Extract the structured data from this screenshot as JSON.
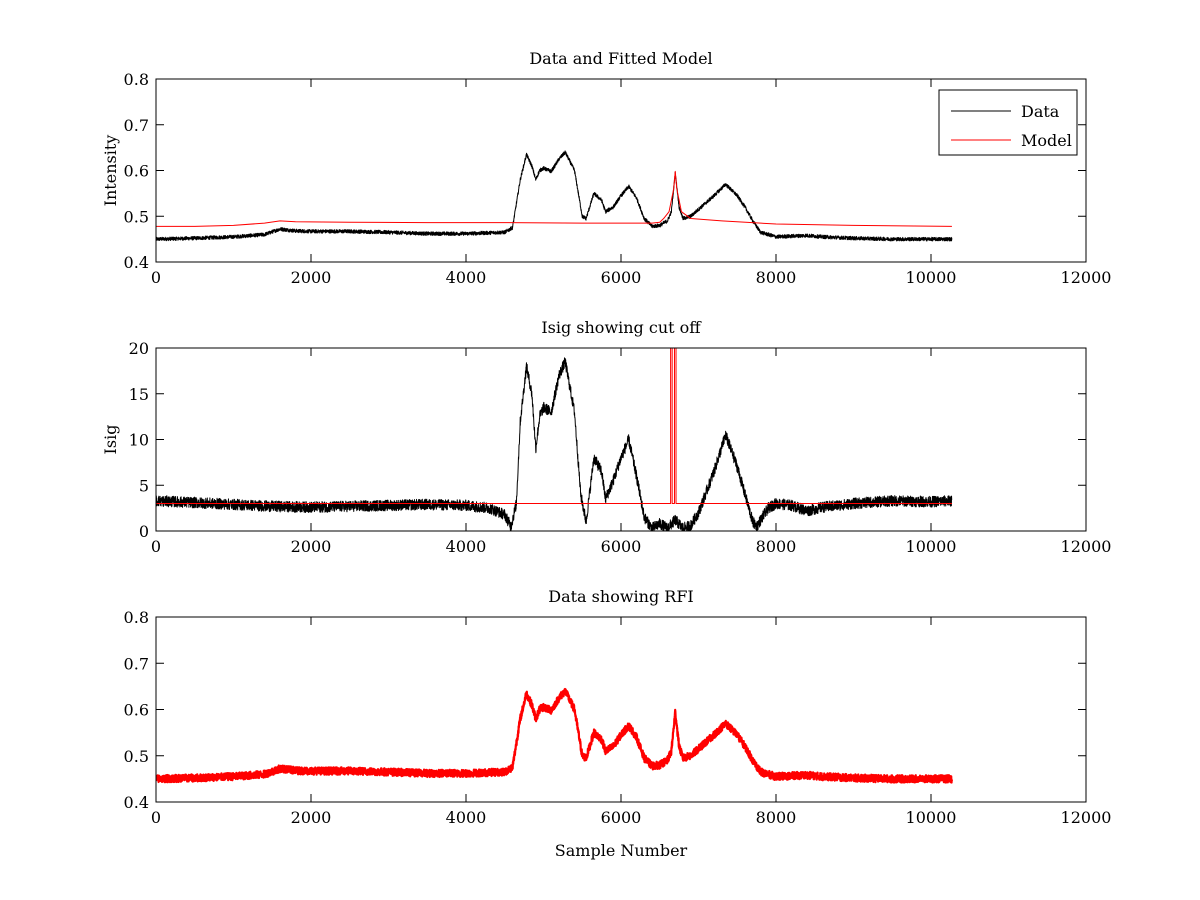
{
  "chart_data": [
    {
      "type": "line",
      "title": "Data and Fitted Model",
      "xlabel": "",
      "ylabel": "Intensity",
      "xlim": [
        0,
        12000
      ],
      "ylim": [
        0.4,
        0.8
      ],
      "xticks": [
        0,
        2000,
        4000,
        6000,
        8000,
        10000,
        12000
      ],
      "yticks": [
        0.4,
        0.5,
        0.6,
        0.7,
        0.8
      ],
      "ytick_labels": [
        "0.4",
        "0.5",
        "0.6",
        "0.7",
        "0.8"
      ],
      "grid": false,
      "legend": {
        "placement": "top-right",
        "entries": [
          "Data",
          "Model"
        ]
      },
      "series": [
        {
          "name": "Data",
          "color": "#000000",
          "noise": 0.004,
          "points": [
            [
              0,
              0.45
            ],
            [
              500,
              0.452
            ],
            [
              1000,
              0.455
            ],
            [
              1400,
              0.46
            ],
            [
              1600,
              0.472
            ],
            [
              1800,
              0.468
            ],
            [
              2000,
              0.467
            ],
            [
              2500,
              0.467
            ],
            [
              3000,
              0.465
            ],
            [
              3500,
              0.462
            ],
            [
              4000,
              0.462
            ],
            [
              4500,
              0.465
            ],
            [
              4600,
              0.475
            ],
            [
              4700,
              0.58
            ],
            [
              4780,
              0.635
            ],
            [
              4850,
              0.61
            ],
            [
              4900,
              0.58
            ],
            [
              4950,
              0.6
            ],
            [
              5000,
              0.605
            ],
            [
              5100,
              0.598
            ],
            [
              5200,
              0.625
            ],
            [
              5280,
              0.64
            ],
            [
              5400,
              0.6
            ],
            [
              5500,
              0.5
            ],
            [
              5550,
              0.495
            ],
            [
              5650,
              0.55
            ],
            [
              5750,
              0.535
            ],
            [
              5800,
              0.51
            ],
            [
              5900,
              0.52
            ],
            [
              6000,
              0.545
            ],
            [
              6100,
              0.565
            ],
            [
              6200,
              0.54
            ],
            [
              6300,
              0.495
            ],
            [
              6400,
              0.478
            ],
            [
              6500,
              0.48
            ],
            [
              6600,
              0.49
            ],
            [
              6650,
              0.51
            ],
            [
              6700,
              0.595
            ],
            [
              6750,
              0.52
            ],
            [
              6800,
              0.495
            ],
            [
              6900,
              0.5
            ],
            [
              7000,
              0.515
            ],
            [
              7200,
              0.545
            ],
            [
              7350,
              0.57
            ],
            [
              7500,
              0.545
            ],
            [
              7600,
              0.52
            ],
            [
              7700,
              0.49
            ],
            [
              7800,
              0.465
            ],
            [
              8000,
              0.455
            ],
            [
              8400,
              0.458
            ],
            [
              8600,
              0.455
            ],
            [
              9000,
              0.452
            ],
            [
              9500,
              0.45
            ],
            [
              10000,
              0.45
            ],
            [
              10270,
              0.45
            ]
          ]
        },
        {
          "name": "Model",
          "color": "#ff0000",
          "noise": 0,
          "points": [
            [
              0,
              0.478
            ],
            [
              500,
              0.478
            ],
            [
              1000,
              0.48
            ],
            [
              1400,
              0.485
            ],
            [
              1600,
              0.49
            ],
            [
              1800,
              0.488
            ],
            [
              2500,
              0.487
            ],
            [
              3500,
              0.486
            ],
            [
              4500,
              0.486
            ],
            [
              5500,
              0.485
            ],
            [
              6400,
              0.485
            ],
            [
              6500,
              0.487
            ],
            [
              6550,
              0.495
            ],
            [
              6620,
              0.51
            ],
            [
              6680,
              0.56
            ],
            [
              6700,
              0.598
            ],
            [
              6720,
              0.56
            ],
            [
              6780,
              0.51
            ],
            [
              6900,
              0.495
            ],
            [
              7300,
              0.49
            ],
            [
              8000,
              0.483
            ],
            [
              9000,
              0.48
            ],
            [
              10270,
              0.478
            ]
          ]
        }
      ]
    },
    {
      "type": "line",
      "title": "Isig showing cut off",
      "xlabel": "",
      "ylabel": "Isig",
      "xlim": [
        0,
        12000
      ],
      "ylim": [
        0,
        20
      ],
      "xticks": [
        0,
        2000,
        4000,
        6000,
        8000,
        10000,
        12000
      ],
      "yticks": [
        0,
        5,
        10,
        15,
        20
      ],
      "ytick_labels": [
        "0",
        "5",
        "10",
        "15",
        "20"
      ],
      "grid": false,
      "series": [
        {
          "name": "",
          "color": "#000000",
          "noise": 0.6,
          "points": [
            [
              0,
              3.3
            ],
            [
              500,
              3.1
            ],
            [
              1000,
              2.9
            ],
            [
              1500,
              2.7
            ],
            [
              2000,
              2.6
            ],
            [
              2500,
              2.7
            ],
            [
              3000,
              2.8
            ],
            [
              3500,
              2.9
            ],
            [
              4000,
              2.8
            ],
            [
              4300,
              2.5
            ],
            [
              4500,
              1.8
            ],
            [
              4580,
              0.5
            ],
            [
              4650,
              3
            ],
            [
              4700,
              12
            ],
            [
              4780,
              18
            ],
            [
              4850,
              15
            ],
            [
              4900,
              9
            ],
            [
              4950,
              12.5
            ],
            [
              5000,
              13.5
            ],
            [
              5100,
              13
            ],
            [
              5200,
              17
            ],
            [
              5280,
              18.5
            ],
            [
              5400,
              13
            ],
            [
              5480,
              4
            ],
            [
              5550,
              1
            ],
            [
              5650,
              8
            ],
            [
              5750,
              6.5
            ],
            [
              5800,
              3.5
            ],
            [
              5900,
              5.5
            ],
            [
              6000,
              8
            ],
            [
              6100,
              10
            ],
            [
              6200,
              6
            ],
            [
              6300,
              1.5
            ],
            [
              6400,
              0.3
            ],
            [
              6500,
              0.8
            ],
            [
              6600,
              0.3
            ],
            [
              6700,
              1.2
            ],
            [
              6800,
              0.3
            ],
            [
              6900,
              0.6
            ],
            [
              7000,
              2
            ],
            [
              7200,
              6.5
            ],
            [
              7350,
              10.5
            ],
            [
              7500,
              7
            ],
            [
              7600,
              4
            ],
            [
              7700,
              1
            ],
            [
              7750,
              0.5
            ],
            [
              7900,
              2.5
            ],
            [
              8000,
              3
            ],
            [
              8200,
              2.8
            ],
            [
              8400,
              2.2
            ],
            [
              8600,
              2.6
            ],
            [
              9000,
              3
            ],
            [
              9500,
              3.3
            ],
            [
              10000,
              3.2
            ],
            [
              10270,
              3.3
            ]
          ]
        },
        {
          "name": "",
          "color": "#ff0000",
          "noise": 0,
          "points": [
            [
              0,
              3
            ],
            [
              6640,
              3
            ],
            [
              6640,
              20
            ],
            [
              6660,
              20
            ],
            [
              6660,
              3
            ],
            [
              6690,
              3
            ],
            [
              6690,
              20
            ],
            [
              6710,
              20
            ],
            [
              6710,
              3
            ],
            [
              10270,
              3
            ]
          ]
        }
      ]
    },
    {
      "type": "line",
      "title": "Data showing RFI",
      "xlabel": "Sample Number",
      "ylabel": "",
      "xlim": [
        0,
        12000
      ],
      "ylim": [
        0.4,
        0.8
      ],
      "xticks": [
        0,
        2000,
        4000,
        6000,
        8000,
        10000,
        12000
      ],
      "yticks": [
        0.4,
        0.5,
        0.6,
        0.7,
        0.8
      ],
      "ytick_labels": [
        "0.4",
        "0.5",
        "0.6",
        "0.7",
        "0.8"
      ],
      "grid": false,
      "series": [
        {
          "name": "",
          "color": "#ff0000",
          "noise": 0.008,
          "thick": true,
          "points": [
            [
              0,
              0.45
            ],
            [
              500,
              0.452
            ],
            [
              1000,
              0.455
            ],
            [
              1400,
              0.46
            ],
            [
              1600,
              0.472
            ],
            [
              1800,
              0.468
            ],
            [
              2000,
              0.467
            ],
            [
              2500,
              0.467
            ],
            [
              3000,
              0.465
            ],
            [
              3500,
              0.462
            ],
            [
              4000,
              0.462
            ],
            [
              4500,
              0.465
            ],
            [
              4600,
              0.475
            ],
            [
              4700,
              0.58
            ],
            [
              4780,
              0.635
            ],
            [
              4850,
              0.61
            ],
            [
              4900,
              0.58
            ],
            [
              4950,
              0.6
            ],
            [
              5000,
              0.605
            ],
            [
              5100,
              0.598
            ],
            [
              5200,
              0.625
            ],
            [
              5280,
              0.64
            ],
            [
              5400,
              0.6
            ],
            [
              5500,
              0.5
            ],
            [
              5550,
              0.495
            ],
            [
              5650,
              0.55
            ],
            [
              5750,
              0.535
            ],
            [
              5800,
              0.51
            ],
            [
              5900,
              0.52
            ],
            [
              6000,
              0.545
            ],
            [
              6100,
              0.565
            ],
            [
              6200,
              0.54
            ],
            [
              6300,
              0.495
            ],
            [
              6400,
              0.478
            ],
            [
              6500,
              0.48
            ],
            [
              6600,
              0.49
            ],
            [
              6650,
              0.51
            ],
            [
              6700,
              0.595
            ],
            [
              6750,
              0.52
            ],
            [
              6800,
              0.495
            ],
            [
              6900,
              0.5
            ],
            [
              7000,
              0.515
            ],
            [
              7200,
              0.545
            ],
            [
              7350,
              0.57
            ],
            [
              7500,
              0.545
            ],
            [
              7600,
              0.52
            ],
            [
              7700,
              0.49
            ],
            [
              7800,
              0.465
            ],
            [
              8000,
              0.455
            ],
            [
              8400,
              0.458
            ],
            [
              8600,
              0.455
            ],
            [
              9000,
              0.452
            ],
            [
              9500,
              0.45
            ],
            [
              10000,
              0.45
            ],
            [
              10270,
              0.45
            ]
          ]
        }
      ]
    }
  ]
}
